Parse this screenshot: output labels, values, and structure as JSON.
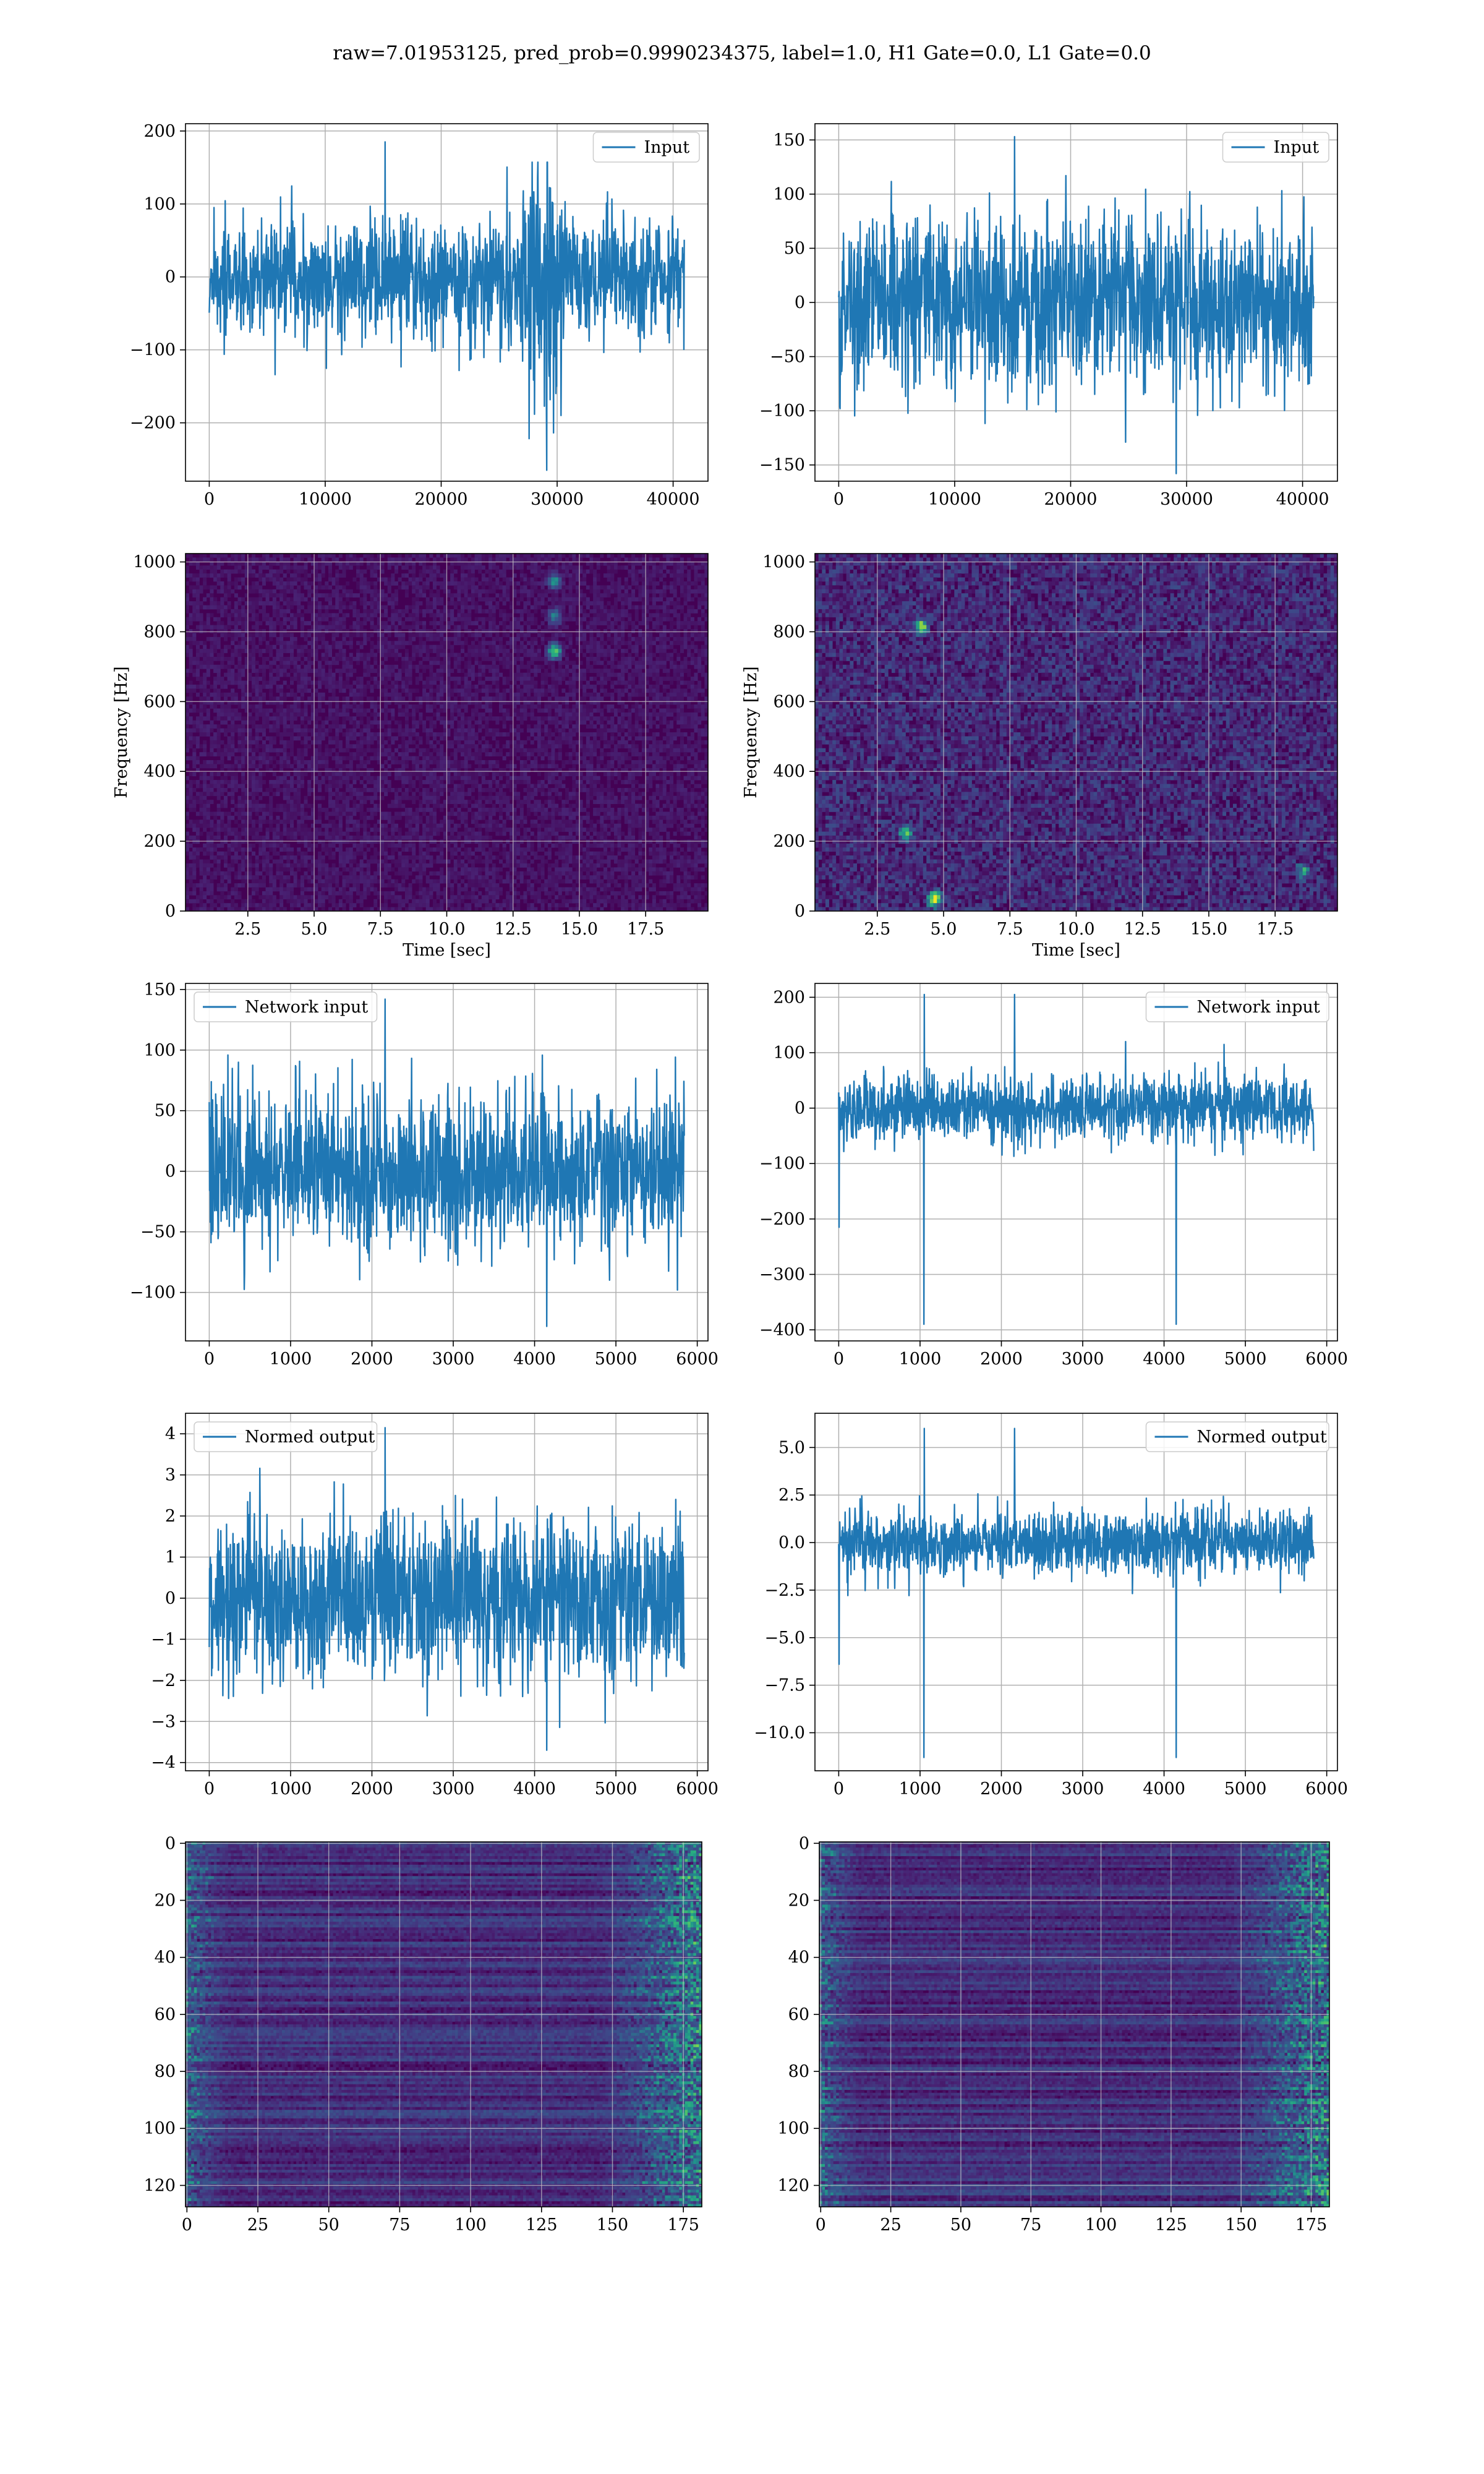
{
  "title": "raw=7.01953125, pred_prob=0.9990234375, label=1.0, H1 Gate=0.0, L1 Gate=0.0",
  "colors": {
    "series": "#1f77b4",
    "grid": "#b0b0b0",
    "heat_low": "#440154",
    "heat_mid": "#21918c",
    "heat_high": "#fde725"
  },
  "chart_data": [
    {
      "id": "h1-input",
      "type": "line",
      "legend": [
        "Input"
      ],
      "legend_loc": "upper right",
      "xlim": [
        -2048,
        43008
      ],
      "ylim": [
        -280,
        210
      ],
      "xticks": [
        0,
        10000,
        20000,
        30000,
        40000
      ],
      "xtick_labels": [
        "0",
        "10000",
        "20000",
        "30000",
        "40000"
      ],
      "yticks": [
        -200,
        -100,
        0,
        100,
        200
      ],
      "ytick_labels": [
        "−200",
        "−100",
        "0",
        "100",
        "200"
      ],
      "xlabel": "",
      "ylabel": "",
      "grid": true,
      "series": [
        {
          "name": "Input",
          "x_range": [
            0,
            40960
          ],
          "amplitude": 75,
          "peak_excursions": [
            -265,
            185
          ],
          "burst_x": [
            27000,
            30500
          ],
          "burst_amplitude": 180
        }
      ]
    },
    {
      "id": "l1-input",
      "type": "line",
      "legend": [
        "Input"
      ],
      "legend_loc": "upper right",
      "xlim": [
        -2048,
        43008
      ],
      "ylim": [
        -165,
        165
      ],
      "xticks": [
        0,
        10000,
        20000,
        30000,
        40000
      ],
      "xtick_labels": [
        "0",
        "10000",
        "20000",
        "30000",
        "40000"
      ],
      "yticks": [
        -150,
        -100,
        -50,
        0,
        50,
        100,
        150
      ],
      "ytick_labels": [
        "−150",
        "−100",
        "−50",
        "0",
        "50",
        "100",
        "150"
      ],
      "xlabel": "",
      "ylabel": "",
      "grid": true,
      "series": [
        {
          "name": "Input",
          "x_range": [
            0,
            40960
          ],
          "amplitude": 75,
          "peak_excursions": [
            -158,
            153
          ]
        }
      ]
    },
    {
      "id": "h1-spectrogram",
      "type": "heatmap",
      "xlim": [
        0.15,
        19.85
      ],
      "ylim": [
        0,
        1024
      ],
      "xticks": [
        2.5,
        5.0,
        7.5,
        10.0,
        12.5,
        15.0,
        17.5
      ],
      "xtick_labels": [
        "2.5",
        "5.0",
        "7.5",
        "10.0",
        "12.5",
        "15.0",
        "17.5"
      ],
      "yticks": [
        0,
        200,
        400,
        600,
        800,
        1000
      ],
      "ytick_labels": [
        "0",
        "200",
        "400",
        "600",
        "800",
        "1000"
      ],
      "xlabel": "Time [sec]",
      "ylabel": "Frequency [Hz]",
      "grid": true,
      "colormap": "viridis",
      "noise_level": 0.13,
      "hotspots": [
        {
          "t": 14.0,
          "f": 750,
          "v": 0.75
        },
        {
          "t": 14.0,
          "f": 950,
          "v": 0.5
        },
        {
          "t": 14.0,
          "f": 850,
          "v": 0.45
        }
      ]
    },
    {
      "id": "l1-spectrogram",
      "type": "heatmap",
      "xlim": [
        0.15,
        19.85
      ],
      "ylim": [
        0,
        1024
      ],
      "xticks": [
        2.5,
        5.0,
        7.5,
        10.0,
        12.5,
        15.0,
        17.5
      ],
      "xtick_labels": [
        "2.5",
        "5.0",
        "7.5",
        "10.0",
        "12.5",
        "15.0",
        "17.5"
      ],
      "yticks": [
        0,
        200,
        400,
        600,
        800,
        1000
      ],
      "ytick_labels": [
        "0",
        "200",
        "400",
        "600",
        "800",
        "1000"
      ],
      "xlabel": "Time [sec]",
      "ylabel": "Frequency [Hz]",
      "grid": true,
      "colormap": "viridis",
      "noise_level": 0.3,
      "hotspots": [
        {
          "t": 4.6,
          "f": 40,
          "v": 0.9
        },
        {
          "t": 4.1,
          "f": 820,
          "v": 0.8
        },
        {
          "t": 3.5,
          "f": 230,
          "v": 0.6
        },
        {
          "t": 18.5,
          "f": 120,
          "v": 0.5
        }
      ]
    },
    {
      "id": "h1-network-input",
      "type": "line",
      "legend": [
        "Network input"
      ],
      "legend_loc": "upper left",
      "xlim": [
        -292,
        6132
      ],
      "ylim": [
        -140,
        155
      ],
      "xticks": [
        0,
        1000,
        2000,
        3000,
        4000,
        5000,
        6000
      ],
      "xtick_labels": [
        "0",
        "1000",
        "2000",
        "3000",
        "4000",
        "5000",
        "6000"
      ],
      "yticks": [
        -100,
        -50,
        0,
        50,
        100,
        150
      ],
      "ytick_labels": [
        "−100",
        "−50",
        "0",
        "50",
        "100",
        "150"
      ],
      "xlabel": "",
      "ylabel": "",
      "grid": true,
      "series": [
        {
          "name": "Network input",
          "x_range": [
            0,
            5840
          ],
          "amplitude": 60,
          "peak_excursions": [
            -128,
            142
          ]
        }
      ]
    },
    {
      "id": "l1-network-input",
      "type": "line",
      "legend": [
        "Network input"
      ],
      "legend_loc": "upper right",
      "xlim": [
        -292,
        6132
      ],
      "ylim": [
        -420,
        225
      ],
      "xticks": [
        0,
        1000,
        2000,
        3000,
        4000,
        5000,
        6000
      ],
      "xtick_labels": [
        "0",
        "1000",
        "2000",
        "3000",
        "4000",
        "5000",
        "6000"
      ],
      "yticks": [
        -400,
        -300,
        -200,
        -100,
        0,
        100,
        200
      ],
      "ytick_labels": [
        "−400",
        "−300",
        "−200",
        "−100",
        "0",
        "100",
        "200"
      ],
      "xlabel": "",
      "ylabel": "",
      "grid": true,
      "series": [
        {
          "name": "Network input",
          "x_range": [
            0,
            5840
          ],
          "amplitude": 55,
          "peak_excursions": [
            -390,
            205
          ],
          "spike_x": 1050,
          "spike_values": [
            205,
            -390
          ],
          "edge_dip": [
            0,
            -215
          ]
        }
      ]
    },
    {
      "id": "h1-normed-output",
      "type": "line",
      "legend": [
        "Normed output"
      ],
      "legend_loc": "upper left",
      "xlim": [
        -292,
        6132
      ],
      "ylim": [
        -4.2,
        4.5
      ],
      "xticks": [
        0,
        1000,
        2000,
        3000,
        4000,
        5000,
        6000
      ],
      "xtick_labels": [
        "0",
        "1000",
        "2000",
        "3000",
        "4000",
        "5000",
        "6000"
      ],
      "yticks": [
        -4,
        -3,
        -2,
        -1,
        0,
        1,
        2,
        3,
        4
      ],
      "ytick_labels": [
        "−4",
        "−3",
        "−2",
        "−1",
        "0",
        "1",
        "2",
        "3",
        "4"
      ],
      "xlabel": "",
      "ylabel": "",
      "grid": true,
      "series": [
        {
          "name": "Normed output",
          "x_range": [
            0,
            5840
          ],
          "amplitude": 1.8,
          "peak_excursions": [
            -3.7,
            4.15
          ]
        }
      ]
    },
    {
      "id": "l1-normed-output",
      "type": "line",
      "legend": [
        "Normed output"
      ],
      "legend_loc": "upper right",
      "xlim": [
        -292,
        6132
      ],
      "ylim": [
        -12.0,
        6.8
      ],
      "xticks": [
        0,
        1000,
        2000,
        3000,
        4000,
        5000,
        6000
      ],
      "xtick_labels": [
        "0",
        "1000",
        "2000",
        "3000",
        "4000",
        "5000",
        "6000"
      ],
      "yticks": [
        -10.0,
        -7.5,
        -5.0,
        -2.5,
        0.0,
        2.5,
        5.0
      ],
      "ytick_labels": [
        "−10.0",
        "−7.5",
        "−5.0",
        "−2.5",
        "0.0",
        "2.5",
        "5.0"
      ],
      "xlabel": "",
      "ylabel": "",
      "grid": true,
      "series": [
        {
          "name": "Normed output",
          "x_range": [
            0,
            5840
          ],
          "amplitude": 1.6,
          "peak_excursions": [
            -11.3,
            6.0
          ],
          "spike_x": 1050,
          "spike_values": [
            6.0,
            -11.3
          ],
          "edge_dip": [
            0,
            -6.4
          ]
        }
      ]
    },
    {
      "id": "h1-feature-map",
      "type": "heatmap",
      "xlim": [
        -0.5,
        181.5
      ],
      "ylim": [
        127.5,
        -0.5
      ],
      "xticks": [
        0,
        25,
        50,
        75,
        100,
        125,
        150,
        175
      ],
      "xtick_labels": [
        "0",
        "25",
        "50",
        "75",
        "100",
        "125",
        "150",
        "175"
      ],
      "yticks": [
        0,
        20,
        40,
        60,
        80,
        100,
        120
      ],
      "ytick_labels": [
        "0",
        "20",
        "40",
        "60",
        "80",
        "100",
        "120"
      ],
      "xlabel": "",
      "ylabel": "",
      "grid": true,
      "colormap": "viridis",
      "noise_level": 0.25
    },
    {
      "id": "l1-feature-map",
      "type": "heatmap",
      "xlim": [
        -0.5,
        181.5
      ],
      "ylim": [
        127.5,
        -0.5
      ],
      "xticks": [
        0,
        25,
        50,
        75,
        100,
        125,
        150,
        175
      ],
      "xtick_labels": [
        "0",
        "25",
        "50",
        "75",
        "100",
        "125",
        "150",
        "175"
      ],
      "yticks": [
        0,
        20,
        40,
        60,
        80,
        100,
        120
      ],
      "ytick_labels": [
        "0",
        "20",
        "40",
        "60",
        "80",
        "100",
        "120"
      ],
      "xlabel": "",
      "ylabel": "",
      "grid": true,
      "colormap": "viridis",
      "noise_level": 0.2
    }
  ]
}
